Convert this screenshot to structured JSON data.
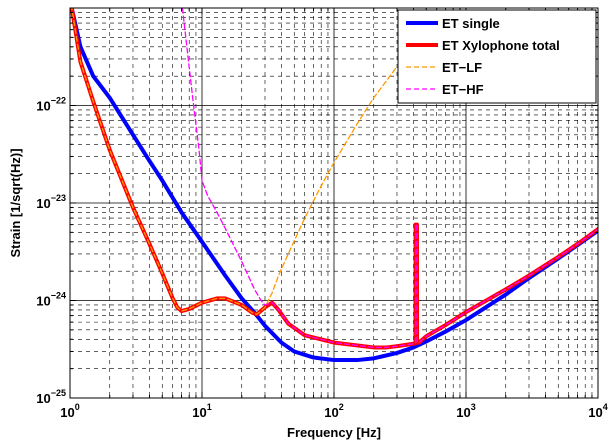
{
  "chart_data": {
    "type": "line",
    "xlabel": "Frequency [Hz]",
    "ylabel": "Strain [1/sqrt(Hz)]",
    "x_scale": "log",
    "y_scale": "log",
    "xlim": [
      1,
      10000
    ],
    "ylim": [
      1e-25,
      1e-21
    ],
    "grid": true,
    "x_ticks": [
      {
        "value": 1,
        "base": "10",
        "exp": "0"
      },
      {
        "value": 10,
        "base": "10",
        "exp": "1"
      },
      {
        "value": 100,
        "base": "10",
        "exp": "2"
      },
      {
        "value": 1000,
        "base": "10",
        "exp": "3"
      },
      {
        "value": 10000,
        "base": "10",
        "exp": "4"
      }
    ],
    "y_ticks": [
      {
        "value": 1e-25,
        "base": "10",
        "exp": "−25"
      },
      {
        "value": 1e-24,
        "base": "10",
        "exp": "−24"
      },
      {
        "value": 1e-23,
        "base": "10",
        "exp": "−23"
      },
      {
        "value": 1e-22,
        "base": "10",
        "exp": "−22"
      }
    ],
    "legend_position": "top-right",
    "series": [
      {
        "name": "ET single",
        "color": "#0000ff",
        "style": "solid-thick",
        "x": [
          1.0,
          1.2,
          1.5,
          2,
          3,
          4,
          5,
          7,
          10,
          15,
          20,
          25,
          30,
          40,
          50,
          70,
          100,
          150,
          200,
          300,
          400,
          500,
          700,
          1000,
          2000,
          3000,
          5000,
          7000,
          10000
        ],
        "y": [
          1.2e-21,
          4e-22,
          2e-22,
          1.2e-22,
          5e-23,
          2.7e-23,
          1.7e-23,
          8e-24,
          4e-24,
          1.8e-24,
          1.05e-24,
          7.5e-25,
          5.5e-25,
          3.7e-25,
          3e-25,
          2.6e-25,
          2.45e-25,
          2.45e-25,
          2.55e-25,
          2.9e-25,
          3.3e-25,
          3.8e-25,
          4.8e-25,
          6.3e-25,
          1.15e-24,
          1.7e-24,
          2.7e-24,
          3.7e-24,
          5.2e-24
        ]
      },
      {
        "name": "ET Xylophone total",
        "color": "#ff0000",
        "style": "solid-thick",
        "x": [
          1.0,
          1.2,
          1.5,
          2,
          3,
          4,
          5,
          6,
          6.5,
          7,
          8,
          10,
          13,
          15,
          20,
          24,
          26,
          30,
          34,
          38,
          45,
          60,
          100,
          200,
          250,
          300,
          400,
          414,
          415,
          425,
          426,
          440,
          500,
          700,
          1000,
          2000,
          3000,
          5000,
          7000,
          10000
        ],
        "y": [
          1.3e-21,
          2.8e-22,
          1.1e-22,
          3.5e-23,
          9e-24,
          3.8e-24,
          1.9e-24,
          1.05e-24,
          8.5e-25,
          7.8e-25,
          8.2e-25,
          9.5e-25,
          1.05e-24,
          1.05e-24,
          9e-25,
          7.5e-25,
          7.2e-25,
          8.5e-25,
          9.5e-25,
          8e-25,
          5.8e-25,
          4.4e-25,
          3.7e-25,
          3.3e-25,
          3.3e-25,
          3.4e-25,
          3.6e-25,
          3.65e-25,
          6e-24,
          6e-24,
          3.7e-25,
          3.7e-25,
          4.3e-25,
          5.6e-25,
          7.6e-25,
          1.3e-24,
          1.8e-24,
          2.8e-24,
          3.8e-24,
          5.4e-24
        ]
      },
      {
        "name": "ET−LF",
        "color": "#ff9900",
        "style": "dashed",
        "x": [
          1.0,
          1.2,
          1.5,
          2,
          3,
          4,
          5,
          6,
          6.5,
          7,
          8,
          10,
          13,
          15,
          20,
          24,
          26,
          30,
          34,
          38,
          45,
          60,
          80,
          100,
          150,
          200,
          300,
          400,
          500,
          700
        ],
        "y": [
          1.3e-21,
          2.8e-22,
          1.1e-22,
          3.5e-23,
          9e-24,
          3.8e-24,
          1.9e-24,
          1.05e-24,
          8.5e-25,
          7.8e-25,
          8.2e-25,
          9.5e-25,
          1.05e-24,
          1.05e-24,
          9e-25,
          7.5e-25,
          7.2e-25,
          8.5e-25,
          1.2e-24,
          1.8e-24,
          3e-24,
          7e-24,
          1.5e-23,
          2.6e-23,
          6.5e-23,
          1.2e-22,
          2.5e-22,
          4.3e-22,
          6.5e-22,
          1.2e-21
        ]
      },
      {
        "name": "ET−HF",
        "color": "#ff00ff",
        "style": "dashed",
        "x": [
          7.0,
          8.5,
          9.5,
          10,
          11,
          13,
          15,
          20,
          25,
          28,
          30,
          34,
          38,
          45,
          60,
          100,
          200,
          250,
          300,
          400,
          414,
          415,
          425,
          426,
          440,
          500,
          700,
          1000,
          2000,
          3000,
          5000,
          7000,
          10000
        ],
        "y": [
          1.2e-21,
          1.2e-22,
          3.5e-23,
          1.7e-23,
          1.2e-23,
          8e-24,
          5.5e-24,
          2.5e-24,
          1.3e-24,
          1e-24,
          9e-25,
          9.5e-25,
          8e-25,
          5.8e-25,
          4.4e-25,
          3.7e-25,
          3.3e-25,
          3.3e-25,
          3.4e-25,
          3.6e-25,
          3.65e-25,
          6e-24,
          6e-24,
          3.7e-25,
          3.7e-25,
          4.3e-25,
          5.6e-25,
          7.6e-25,
          1.3e-24,
          1.8e-24,
          2.8e-24,
          3.8e-24,
          5.4e-24
        ]
      }
    ]
  }
}
